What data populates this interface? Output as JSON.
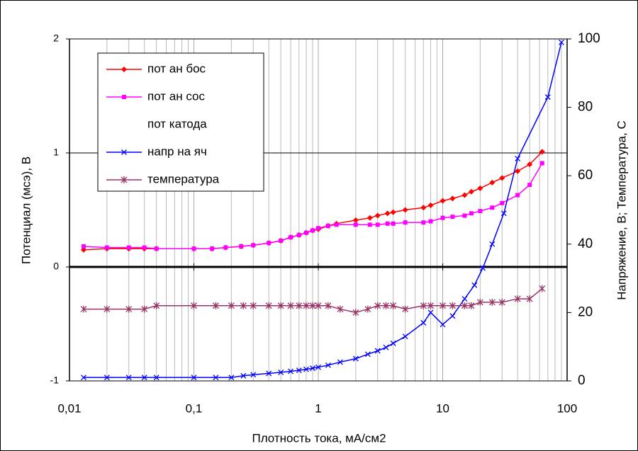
{
  "chart_data": {
    "type": "line",
    "x_label": "Плотность тока, мА/см2",
    "y_label": "Потенциал (мсэ), В",
    "y2_label": "Напряжение, В; Температура, С",
    "x_scale": "log",
    "grid": true,
    "legend": "upper left",
    "xlim": [
      0.01,
      100
    ],
    "xticks": [
      {
        "value": 0.01,
        "label": "0,01"
      },
      {
        "value": 0.1,
        "label": "0,1"
      },
      1,
      10,
      100
    ],
    "ylim": [
      -1,
      2
    ],
    "yticks": [
      -1,
      0,
      1,
      2
    ],
    "y2lim": [
      0,
      100
    ],
    "y2ticks": [
      0,
      20,
      40,
      60,
      80,
      100
    ],
    "series": [
      {
        "name": "пот ан бос",
        "color": "#ff0000",
        "marker": "diamond",
        "x": [
          0.013,
          0.02,
          0.03,
          0.04,
          0.05,
          0.1,
          0.14,
          0.18,
          0.24,
          0.3,
          0.4,
          0.5,
          0.6,
          0.7,
          0.8,
          0.9,
          1,
          1.2,
          1.4,
          2,
          2.6,
          3,
          3.6,
          4,
          5,
          7,
          8,
          10,
          12,
          15,
          17,
          20,
          25,
          30,
          40,
          50,
          63
        ],
        "values": [
          0.15,
          0.16,
          0.16,
          0.16,
          0.16,
          0.16,
          0.16,
          0.17,
          0.18,
          0.19,
          0.21,
          0.23,
          0.26,
          0.28,
          0.3,
          0.32,
          0.33,
          0.36,
          0.38,
          0.41,
          0.43,
          0.45,
          0.47,
          0.48,
          0.5,
          0.52,
          0.54,
          0.58,
          0.6,
          0.63,
          0.66,
          0.69,
          0.74,
          0.78,
          0.84,
          0.9,
          1.01
        ]
      },
      {
        "name": "пот ан сос",
        "color": "#ff00ff",
        "marker": "square",
        "x": [
          0.013,
          0.02,
          0.03,
          0.04,
          0.05,
          0.1,
          0.14,
          0.18,
          0.24,
          0.3,
          0.4,
          0.5,
          0.6,
          0.7,
          0.8,
          0.9,
          1,
          1.2,
          1.4,
          2,
          2.6,
          3,
          3.6,
          4,
          5,
          7,
          8,
          10,
          12,
          15,
          17,
          20,
          25,
          30,
          40,
          50,
          63
        ],
        "values": [
          0.18,
          0.17,
          0.17,
          0.17,
          0.16,
          0.16,
          0.16,
          0.17,
          0.18,
          0.19,
          0.21,
          0.23,
          0.26,
          0.28,
          0.3,
          0.32,
          0.34,
          0.36,
          0.37,
          0.37,
          0.37,
          0.37,
          0.38,
          0.38,
          0.39,
          0.39,
          0.4,
          0.43,
          0.44,
          0.45,
          0.47,
          0.49,
          0.52,
          0.56,
          0.63,
          0.72,
          0.91
        ]
      },
      {
        "name": "пот катода",
        "color": "#000000",
        "marker": "none",
        "x": [],
        "values": []
      },
      {
        "name": "напр на яч",
        "color": "#0000ff",
        "marker": "x",
        "axis": "y2",
        "x": [
          0.013,
          0.02,
          0.03,
          0.04,
          0.05,
          0.1,
          0.15,
          0.2,
          0.25,
          0.3,
          0.4,
          0.5,
          0.6,
          0.7,
          0.8,
          0.9,
          1,
          1.2,
          1.5,
          2,
          2.5,
          3,
          3.5,
          4,
          5,
          7,
          8,
          10,
          12,
          15,
          18,
          21,
          25,
          31,
          40,
          70,
          90
        ],
        "values": [
          1,
          1,
          1,
          1,
          1,
          1,
          1,
          1,
          1.5,
          1.8,
          2.2,
          2.5,
          2.8,
          3.1,
          3.4,
          3.7,
          4,
          4.6,
          5.5,
          6.5,
          7.8,
          8.8,
          9.8,
          11,
          13,
          17,
          20,
          16.5,
          19,
          24,
          28,
          33,
          40,
          49,
          65,
          83,
          99
        ]
      },
      {
        "name": "температура",
        "color": "#993366",
        "marker": "star",
        "axis": "y2",
        "x": [
          0.013,
          0.02,
          0.03,
          0.04,
          0.05,
          0.1,
          0.15,
          0.2,
          0.25,
          0.3,
          0.4,
          0.5,
          0.6,
          0.7,
          0.8,
          0.9,
          1,
          1.2,
          1.5,
          2,
          2.5,
          3,
          3.5,
          4,
          5,
          7,
          8,
          10,
          12,
          15,
          17,
          20,
          25,
          30,
          40,
          50,
          63
        ],
        "values": [
          21,
          21,
          21,
          21,
          22,
          22,
          22,
          22,
          22,
          22,
          22,
          22,
          22,
          22,
          22,
          22,
          22,
          22,
          21,
          20,
          21,
          22,
          22,
          22,
          21,
          22,
          22,
          22,
          22,
          22,
          22,
          23,
          23,
          23,
          24,
          24,
          27
        ]
      }
    ]
  }
}
